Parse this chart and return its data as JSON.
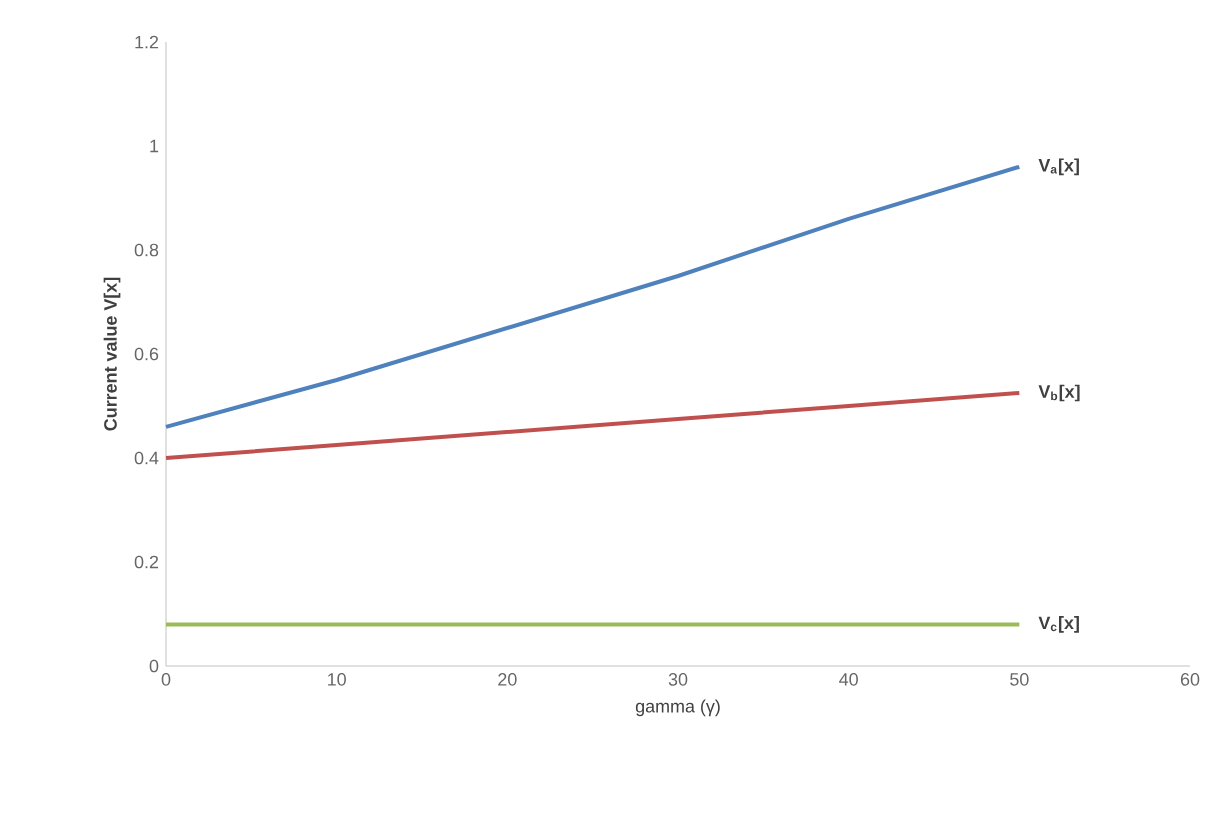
{
  "chart_data": {
    "type": "line",
    "xlabel": "gamma (γ)",
    "ylabel": "Current value  V[x]",
    "x": [
      0,
      10,
      20,
      30,
      40,
      50
    ],
    "series": [
      {
        "name": "V$_{a}$[x]",
        "color": "#4f81bd",
        "values": [
          0.46,
          0.55,
          0.65,
          0.75,
          0.86,
          0.96
        ]
      },
      {
        "name": "V$_{b}$[x]",
        "color": "#c0504d",
        "values": [
          0.4,
          0.425,
          0.45,
          0.475,
          0.5,
          0.525
        ]
      },
      {
        "name": "V$_{c}$[x]",
        "color": "#9bbb59",
        "values": [
          0.08,
          0.08,
          0.08,
          0.08,
          0.08,
          0.08
        ]
      }
    ],
    "xlim": [
      0,
      60
    ],
    "xticks": [
      0,
      10,
      20,
      30,
      40,
      50,
      60
    ],
    "ylim": [
      0,
      1.2
    ],
    "yticks": [
      0,
      0.2,
      0.4,
      0.6,
      0.8,
      1,
      1.2
    ],
    "grid": false,
    "legend": false,
    "marker": "none",
    "line_style": "solid"
  }
}
